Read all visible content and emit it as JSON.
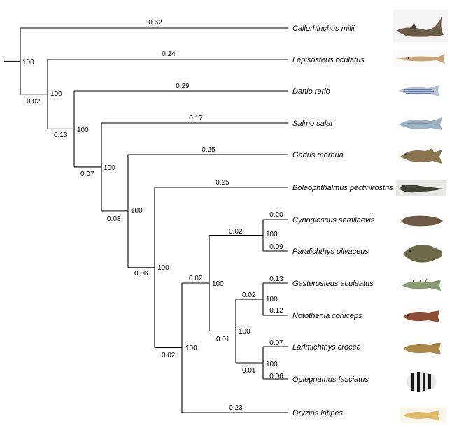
{
  "tree": {
    "taxa": [
      {
        "name": "Callorhinchus milii",
        "branch_length": "0.62",
        "fish": "chimaera-shark"
      },
      {
        "name": "Lepisosteus oculatus",
        "branch_length": "0.24",
        "fish": "gar"
      },
      {
        "name": "Danio rerio",
        "branch_length": "0.29",
        "fish": "zebrafish"
      },
      {
        "name": "Salmo salar",
        "branch_length": "0.17",
        "fish": "salmon"
      },
      {
        "name": "Gadus morhua",
        "branch_length": "0.25",
        "fish": "cod"
      },
      {
        "name": "Boleophthalmus pectinirostris",
        "branch_length": "0.25",
        "fish": "mudskipper"
      },
      {
        "name": "Cynoglossus semilaevis",
        "branch_length": "0.20",
        "fish": "tongue-sole"
      },
      {
        "name": "Paralichthys olivaceus",
        "branch_length": "0.09",
        "fish": "flounder"
      },
      {
        "name": "Gasterosteus aculeatus",
        "branch_length": "0.13",
        "fish": "stickleback"
      },
      {
        "name": "Notothenia coriiceps",
        "branch_length": "0.12",
        "fish": "notothen"
      },
      {
        "name": "Larimichthys crocea",
        "branch_length": "0.07",
        "fish": "croaker"
      },
      {
        "name": "Oplegnathus fasciatus",
        "branch_length": "0.06",
        "fish": "knifejaw"
      },
      {
        "name": "Oryzias latipes",
        "branch_length": "0.23",
        "fish": "medaka"
      }
    ],
    "nodes": [
      {
        "id": "n1",
        "support": "100",
        "branch_length": ""
      },
      {
        "id": "n2",
        "support": "100",
        "branch_length": "0.02"
      },
      {
        "id": "n3",
        "support": "100",
        "branch_length": "0.13"
      },
      {
        "id": "n4",
        "support": "100",
        "branch_length": "0.07"
      },
      {
        "id": "n5",
        "support": "100",
        "branch_length": "0.08"
      },
      {
        "id": "n6",
        "support": "100",
        "branch_length": "0.06"
      },
      {
        "id": "n7",
        "support": "100",
        "branch_length": "0.02"
      },
      {
        "id": "n8",
        "support": "100",
        "branch_length": "0.02"
      },
      {
        "id": "n9",
        "support": "100",
        "branch_length": "0.02"
      },
      {
        "id": "n10",
        "support": "100",
        "branch_length": "0.01"
      },
      {
        "id": "n11",
        "support": "100",
        "branch_length": "0.02"
      },
      {
        "id": "n12",
        "support": "100",
        "branch_length": "0.01"
      }
    ]
  },
  "colors": {
    "line": "#000000",
    "text": "#000000",
    "background": "#ffffff"
  }
}
